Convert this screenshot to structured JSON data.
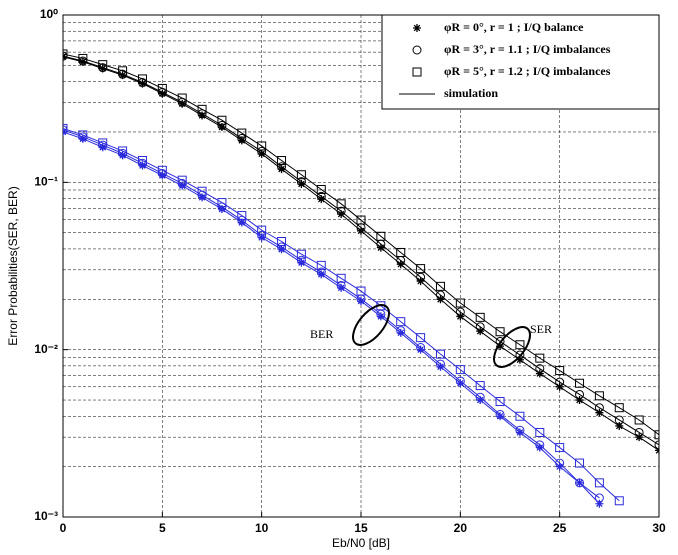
{
  "chart_data": {
    "type": "line",
    "ylog": true,
    "grid": true,
    "minor_grid": true,
    "ylabel": "Error Probabilities(SER, BER)",
    "xlabel": "Eb/N0 [dB]",
    "xlim": [
      0,
      30
    ],
    "xticks": [
      0,
      5,
      10,
      15,
      20,
      25,
      30
    ],
    "ylim": [
      0.001,
      1
    ],
    "yticks": [
      {
        "value": 0.001,
        "label": "10⁻³"
      },
      {
        "value": 0.01,
        "label": "10⁻²"
      },
      {
        "value": 0.1,
        "label": "10⁻¹"
      },
      {
        "value": 1,
        "label": "10⁰"
      }
    ],
    "x": [
      0,
      1,
      2,
      3,
      4,
      5,
      6,
      7,
      8,
      9,
      10,
      11,
      12,
      13,
      14,
      15,
      16,
      17,
      18,
      19,
      20,
      21,
      22,
      23,
      24,
      25,
      26,
      27,
      28,
      29,
      30
    ],
    "legend_position": "upper right",
    "legend": [
      {
        "label": "φR = 0°, r = 1 ; I/Q balance",
        "marker": "star"
      },
      {
        "label": "φR = 3°, r = 1.1 ; I/Q imbalances",
        "marker": "circle"
      },
      {
        "label": "φR = 5°, r = 1.2 ; I/Q imbalances",
        "marker": "square"
      },
      {
        "label": "simulation",
        "marker": "line"
      }
    ],
    "series": [
      {
        "marker": "star",
        "color": "#000000",
        "values": [
          0.562,
          0.525,
          0.479,
          0.437,
          0.389,
          0.339,
          0.295,
          0.251,
          0.214,
          0.178,
          0.148,
          0.12,
          0.0977,
          0.0794,
          0.0646,
          0.0513,
          0.0407,
          0.0324,
          0.0257,
          0.02,
          0.0158,
          0.0129,
          0.0105,
          0.0087,
          0.0072,
          0.006,
          0.005,
          0.0042,
          0.0035,
          0.003,
          0.0025
        ]
      },
      {
        "marker": "circle",
        "color": "#000000",
        "values": [
          0.568,
          0.531,
          0.485,
          0.443,
          0.395,
          0.345,
          0.301,
          0.257,
          0.219,
          0.183,
          0.153,
          0.124,
          0.101,
          0.0825,
          0.0673,
          0.0536,
          0.0427,
          0.0341,
          0.0271,
          0.0212,
          0.0168,
          0.0137,
          0.0112,
          0.0093,
          0.0077,
          0.0064,
          0.0054,
          0.0045,
          0.0038,
          0.0032,
          0.0027
        ]
      },
      {
        "marker": "square",
        "color": "#000000",
        "values": [
          0.585,
          0.55,
          0.505,
          0.464,
          0.415,
          0.364,
          0.319,
          0.273,
          0.235,
          0.197,
          0.165,
          0.135,
          0.111,
          0.0906,
          0.0744,
          0.0595,
          0.0476,
          0.0381,
          0.0305,
          0.0239,
          0.019,
          0.0156,
          0.0128,
          0.0107,
          0.0089,
          0.0075,
          0.0063,
          0.0053,
          0.0045,
          0.0038,
          0.0031
        ]
      },
      {
        "marker": "star",
        "color": "#2b2bdc",
        "values": [
          0.2,
          0.182,
          0.162,
          0.145,
          0.126,
          0.11,
          0.0955,
          0.0813,
          0.0692,
          0.0575,
          0.0468,
          0.0398,
          0.0331,
          0.0282,
          0.0234,
          0.0195,
          0.0158,
          0.0126,
          0.01,
          0.0079,
          0.0063,
          0.005,
          0.004,
          0.0032,
          0.0026,
          0.002,
          0.0016,
          0.0012,
          null,
          null,
          null
        ]
      },
      {
        "marker": "circle",
        "color": "#2b2bdc",
        "values": [
          0.206,
          0.187,
          0.167,
          0.149,
          0.13,
          0.113,
          0.0985,
          0.0838,
          0.0713,
          0.0593,
          0.0483,
          0.0411,
          0.0342,
          0.0291,
          0.0242,
          0.0201,
          0.0163,
          0.013,
          0.0103,
          0.0082,
          0.0065,
          0.0052,
          0.0041,
          0.0033,
          0.0027,
          0.0021,
          0.0016,
          0.0013,
          null,
          null,
          null
        ]
      },
      {
        "marker": "square",
        "color": "#2b2bdc",
        "values": [
          0.21,
          0.192,
          0.172,
          0.154,
          0.135,
          0.118,
          0.103,
          0.0885,
          0.0757,
          0.0633,
          0.0518,
          0.0443,
          0.0372,
          0.0319,
          0.0267,
          0.0224,
          0.0183,
          0.0147,
          0.0118,
          0.0094,
          0.0076,
          0.0061,
          0.0049,
          0.004,
          0.0032,
          0.0026,
          0.0021,
          0.0016,
          0.00125,
          null,
          null
        ]
      }
    ],
    "annotations": [
      "BER",
      "SER"
    ]
  }
}
